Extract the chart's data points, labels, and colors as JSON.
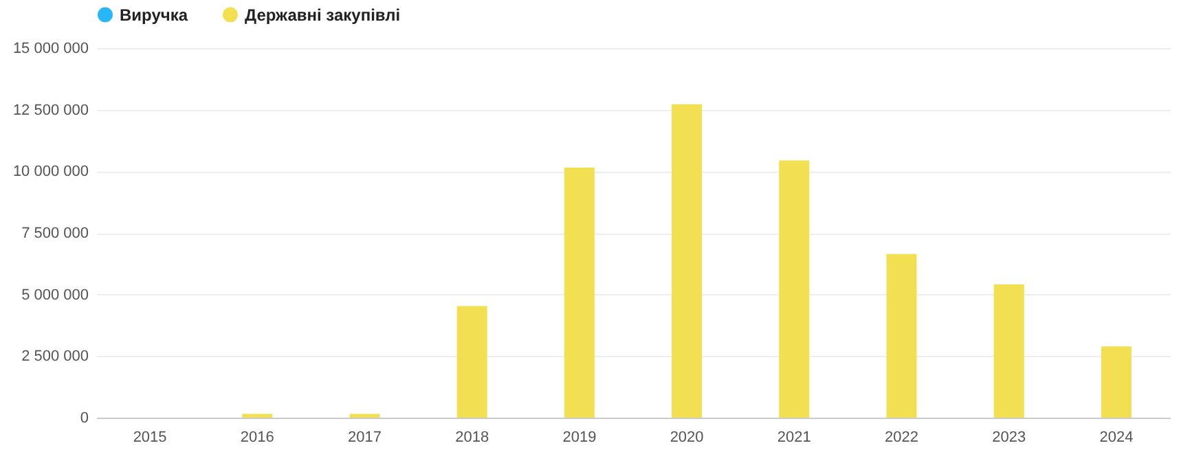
{
  "chart_data": {
    "type": "bar",
    "categories": [
      "2015",
      "2016",
      "2017",
      "2018",
      "2019",
      "2020",
      "2021",
      "2022",
      "2023",
      "2024"
    ],
    "series": [
      {
        "name": "Виручка",
        "color": "#29b6f6",
        "values": [
          null,
          null,
          null,
          null,
          null,
          null,
          null,
          null,
          null,
          null
        ]
      },
      {
        "name": "Державні закупівлі",
        "color": "#f3df52",
        "values": [
          0,
          150000,
          150000,
          4530000,
          10150000,
          12720000,
          10440000,
          6640000,
          5410000,
          2890000
        ]
      }
    ],
    "ylim": [
      0,
      15000000
    ],
    "yticks": [
      {
        "value": 0,
        "label": "0"
      },
      {
        "value": 2500000,
        "label": "2 500 000"
      },
      {
        "value": 5000000,
        "label": "5 000 000"
      },
      {
        "value": 7500000,
        "label": "7 500 000"
      },
      {
        "value": 10000000,
        "label": "10 000 000"
      },
      {
        "value": 12500000,
        "label": "12 500 000"
      },
      {
        "value": 15000000,
        "label": "15 000 000"
      }
    ],
    "grid": "y",
    "legend": "top left"
  }
}
